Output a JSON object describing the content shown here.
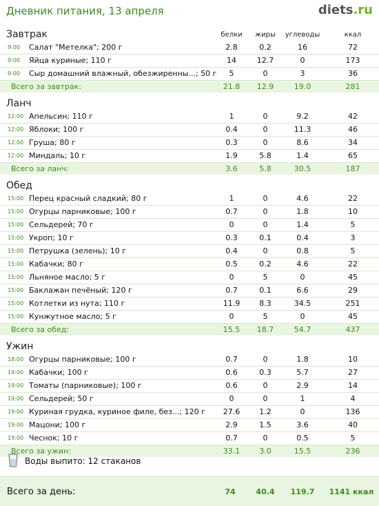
{
  "header": {
    "title": "Дневник питания, 13 апреля",
    "logo_main": "diets",
    "logo_tld": ".ru"
  },
  "columns": {
    "protein": "белки",
    "fat": "жиры",
    "carbs": "углеводы",
    "kcal": "ккал"
  },
  "meals": [
    {
      "title": "Завтрак",
      "items": [
        {
          "time": "9:00",
          "name": "Салат \"Метелка\"; 200 г",
          "protein": "2.8",
          "fat": "0.2",
          "carbs": "16",
          "kcal": "72"
        },
        {
          "time": "9:00",
          "name": "Яйца куриные; 110 г",
          "protein": "14",
          "fat": "12.7",
          "carbs": "0",
          "kcal": "173"
        },
        {
          "time": "9:00",
          "name": "Сыр домашний влажный, обезжиренны...; 50 г",
          "protein": "5",
          "fat": "0",
          "carbs": "3",
          "kcal": "36"
        }
      ],
      "total": {
        "label": "Всего за завтрак:",
        "protein": "21.8",
        "fat": "12.9",
        "carbs": "19.0",
        "kcal": "281"
      }
    },
    {
      "title": "Ланч",
      "items": [
        {
          "time": "12:00",
          "name": "Апельсин; 110 г",
          "protein": "1",
          "fat": "0",
          "carbs": "9.2",
          "kcal": "42"
        },
        {
          "time": "12:00",
          "name": "Яблоки; 100 г",
          "protein": "0.4",
          "fat": "0",
          "carbs": "11.3",
          "kcal": "46"
        },
        {
          "time": "12:00",
          "name": "Груша; 80 г",
          "protein": "0.3",
          "fat": "0",
          "carbs": "8.6",
          "kcal": "34"
        },
        {
          "time": "12:00",
          "name": "Миндаль; 10 г",
          "protein": "1.9",
          "fat": "5.8",
          "carbs": "1.4",
          "kcal": "65"
        }
      ],
      "total": {
        "label": "Всего за ланч:",
        "protein": "3.6",
        "fat": "5.8",
        "carbs": "30.5",
        "kcal": "187"
      }
    },
    {
      "title": "Обед",
      "items": [
        {
          "time": "15:00",
          "name": "Перец красный сладкий; 80 г",
          "protein": "1",
          "fat": "0",
          "carbs": "4.6",
          "kcal": "22"
        },
        {
          "time": "15:00",
          "name": "Огурцы парниковые; 100 г",
          "protein": "0.7",
          "fat": "0",
          "carbs": "1.8",
          "kcal": "10"
        },
        {
          "time": "15:00",
          "name": "Сельдерей; 70 г",
          "protein": "0",
          "fat": "0",
          "carbs": "1.4",
          "kcal": "5"
        },
        {
          "time": "15:00",
          "name": "Укроп; 10 г",
          "protein": "0.3",
          "fat": "0.1",
          "carbs": "0.4",
          "kcal": "3"
        },
        {
          "time": "15:00",
          "name": "Петрушка (зелень); 10 г",
          "protein": "0.4",
          "fat": "0",
          "carbs": "0.8",
          "kcal": "5"
        },
        {
          "time": "15:00",
          "name": "Кабачки; 80 г",
          "protein": "0.5",
          "fat": "0.2",
          "carbs": "4.6",
          "kcal": "22"
        },
        {
          "time": "15:00",
          "name": "Льняное масло; 5 г",
          "protein": "0",
          "fat": "5",
          "carbs": "0",
          "kcal": "45"
        },
        {
          "time": "15:00",
          "name": "Баклажан печёный; 120 г",
          "protein": "0.7",
          "fat": "0.1",
          "carbs": "6.6",
          "kcal": "29"
        },
        {
          "time": "15:00",
          "name": "Котлетки из нута; 110 г",
          "protein": "11.9",
          "fat": "8.3",
          "carbs": "34.5",
          "kcal": "251"
        },
        {
          "time": "15:00",
          "name": "Кунжутное масло; 5 г",
          "protein": "0",
          "fat": "5",
          "carbs": "0",
          "kcal": "45"
        }
      ],
      "total": {
        "label": "Всего за обед:",
        "protein": "15.5",
        "fat": "18.7",
        "carbs": "54.7",
        "kcal": "437"
      }
    },
    {
      "title": "Ужин",
      "items": [
        {
          "time": "18:00",
          "name": "Огурцы парниковые; 100 г",
          "protein": "0.7",
          "fat": "0",
          "carbs": "1.8",
          "kcal": "10"
        },
        {
          "time": "19:00",
          "name": "Кабачки; 100 г",
          "protein": "0.6",
          "fat": "0.3",
          "carbs": "5.7",
          "kcal": "27"
        },
        {
          "time": "19:00",
          "name": "Томаты (парниковые); 100 г",
          "protein": "0.6",
          "fat": "0",
          "carbs": "2.9",
          "kcal": "14"
        },
        {
          "time": "19:00",
          "name": "Сельдерей; 50 г",
          "protein": "0",
          "fat": "0",
          "carbs": "1",
          "kcal": "4"
        },
        {
          "time": "19:00",
          "name": "Куриная грудка, куриное филе, без...; 120 г",
          "protein": "27.6",
          "fat": "1.2",
          "carbs": "0",
          "kcal": "136"
        },
        {
          "time": "19:00",
          "name": "Мацони; 100 г",
          "protein": "2.9",
          "fat": "1.5",
          "carbs": "3.6",
          "kcal": "40"
        },
        {
          "time": "19:00",
          "name": "Чеснок; 10 г",
          "protein": "0.7",
          "fat": "0",
          "carbs": "0.5",
          "kcal": "5"
        }
      ],
      "total": {
        "label": "Всего за ужин:",
        "protein": "33.1",
        "fat": "3.0",
        "carbs": "15.5",
        "kcal": "236"
      }
    }
  ],
  "water": {
    "icon": "glass-icon",
    "text": "Воды выпито: 12 стаканов"
  },
  "day_total": {
    "label": "Всего за день:",
    "protein": "74",
    "fat": "40.4",
    "carbs": "119.7",
    "kcal": "1141 ккал"
  }
}
